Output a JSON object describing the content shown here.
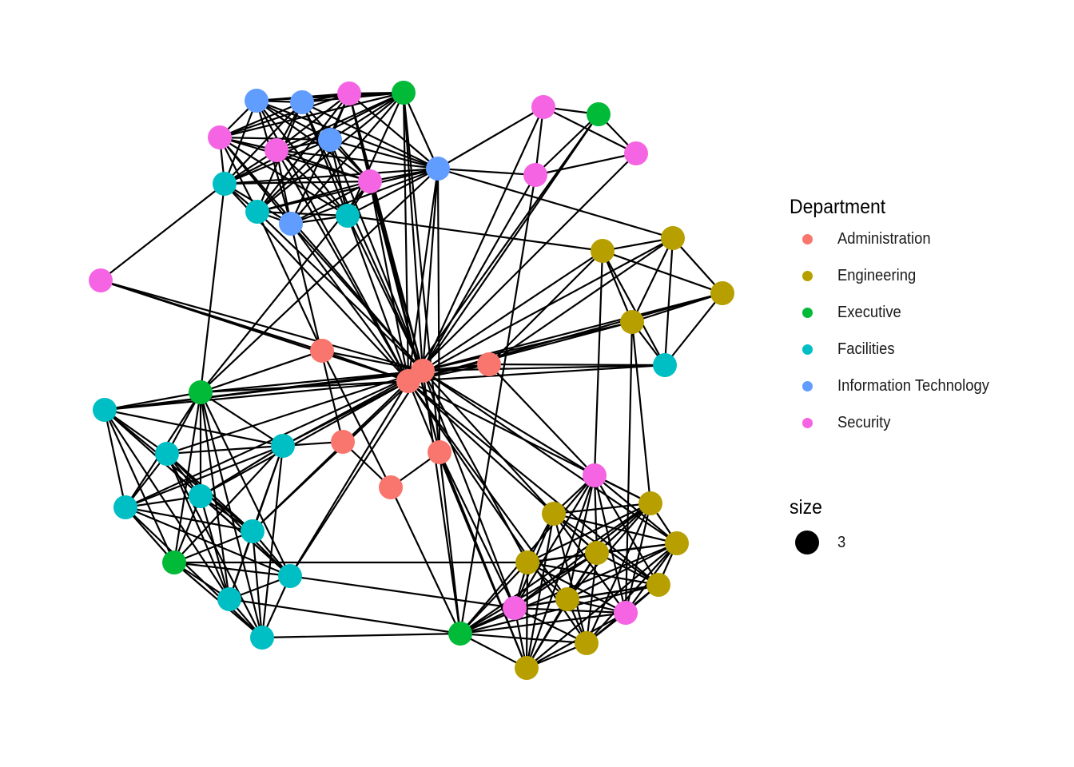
{
  "chart_data": {
    "type": "network",
    "legend": {
      "color_title": "Department",
      "size_title": "size",
      "size_value": "3",
      "placement": "right"
    },
    "departments": [
      {
        "name": "Administration",
        "color": "#F8766D"
      },
      {
        "name": "Engineering",
        "color": "#B79F00"
      },
      {
        "name": "Executive",
        "color": "#00BA38"
      },
      {
        "name": "Facilities",
        "color": "#00BFC4"
      },
      {
        "name": "Information Technology",
        "color": "#619CFF"
      },
      {
        "name": "Security",
        "color": "#F564E3"
      }
    ],
    "nodes": [
      {
        "id": 0,
        "dept": "Information Technology",
        "pos": [
          321,
          126
        ]
      },
      {
        "id": 1,
        "dept": "Information Technology",
        "pos": [
          378,
          128
        ]
      },
      {
        "id": 2,
        "dept": "Security",
        "pos": [
          437,
          117
        ]
      },
      {
        "id": 3,
        "dept": "Executive",
        "pos": [
          505,
          116
        ]
      },
      {
        "id": 4,
        "dept": "Security",
        "pos": [
          275,
          172
        ]
      },
      {
        "id": 5,
        "dept": "Security",
        "pos": [
          346,
          188
        ]
      },
      {
        "id": 6,
        "dept": "Information Technology",
        "pos": [
          413,
          175
        ]
      },
      {
        "id": 7,
        "dept": "Facilities",
        "pos": [
          281,
          230
        ]
      },
      {
        "id": 8,
        "dept": "Security",
        "pos": [
          463,
          227
        ]
      },
      {
        "id": 9,
        "dept": "Information Technology",
        "pos": [
          548,
          211
        ]
      },
      {
        "id": 10,
        "dept": "Facilities",
        "pos": [
          322,
          265
        ]
      },
      {
        "id": 11,
        "dept": "Information Technology",
        "pos": [
          364,
          280
        ]
      },
      {
        "id": 12,
        "dept": "Facilities",
        "pos": [
          435,
          270
        ]
      },
      {
        "id": 13,
        "dept": "Security",
        "pos": [
          680,
          134
        ]
      },
      {
        "id": 14,
        "dept": "Executive",
        "pos": [
          749,
          143
        ]
      },
      {
        "id": 15,
        "dept": "Security",
        "pos": [
          796,
          192
        ]
      },
      {
        "id": 16,
        "dept": "Security",
        "pos": [
          670,
          219
        ]
      },
      {
        "id": 17,
        "dept": "Engineering",
        "pos": [
          754,
          314
        ]
      },
      {
        "id": 18,
        "dept": "Engineering",
        "pos": [
          842,
          298
        ]
      },
      {
        "id": 19,
        "dept": "Engineering",
        "pos": [
          904,
          367
        ]
      },
      {
        "id": 20,
        "dept": "Engineering",
        "pos": [
          791,
          403
        ]
      },
      {
        "id": 21,
        "dept": "Facilities",
        "pos": [
          832,
          457
        ]
      },
      {
        "id": 22,
        "dept": "Security",
        "pos": [
          126,
          351
        ]
      },
      {
        "id": 23,
        "dept": "Administration",
        "pos": [
          403,
          439
        ]
      },
      {
        "id": 24,
        "dept": "Administration",
        "pos": [
          529,
          464
        ]
      },
      {
        "id": 25,
        "dept": "Administration",
        "pos": [
          511,
          477
        ]
      },
      {
        "id": 26,
        "dept": "Administration",
        "pos": [
          612,
          456
        ]
      },
      {
        "id": 27,
        "dept": "Administration",
        "pos": [
          429,
          553
        ]
      },
      {
        "id": 28,
        "dept": "Administration",
        "pos": [
          550,
          566
        ]
      },
      {
        "id": 29,
        "dept": "Administration",
        "pos": [
          489,
          610
        ]
      },
      {
        "id": 30,
        "dept": "Facilities",
        "pos": [
          131,
          513
        ]
      },
      {
        "id": 31,
        "dept": "Executive",
        "pos": [
          251,
          491
        ]
      },
      {
        "id": 32,
        "dept": "Facilities",
        "pos": [
          209,
          568
        ]
      },
      {
        "id": 33,
        "dept": "Facilities",
        "pos": [
          354,
          558
        ]
      },
      {
        "id": 34,
        "dept": "Facilities",
        "pos": [
          157,
          635
        ]
      },
      {
        "id": 35,
        "dept": "Facilities",
        "pos": [
          251,
          621
        ]
      },
      {
        "id": 36,
        "dept": "Facilities",
        "pos": [
          316,
          665
        ]
      },
      {
        "id": 37,
        "dept": "Executive",
        "pos": [
          218,
          704
        ]
      },
      {
        "id": 38,
        "dept": "Facilities",
        "pos": [
          363,
          721
        ]
      },
      {
        "id": 39,
        "dept": "Facilities",
        "pos": [
          287,
          750
        ]
      },
      {
        "id": 40,
        "dept": "Facilities",
        "pos": [
          328,
          798
        ]
      },
      {
        "id": 41,
        "dept": "Security",
        "pos": [
          744,
          595
        ]
      },
      {
        "id": 42,
        "dept": "Engineering",
        "pos": [
          814,
          630
        ]
      },
      {
        "id": 43,
        "dept": "Engineering",
        "pos": [
          693,
          643
        ]
      },
      {
        "id": 44,
        "dept": "Engineering",
        "pos": [
          847,
          680
        ]
      },
      {
        "id": 45,
        "dept": "Engineering",
        "pos": [
          747,
          692
        ]
      },
      {
        "id": 46,
        "dept": "Engineering",
        "pos": [
          660,
          704
        ]
      },
      {
        "id": 47,
        "dept": "Engineering",
        "pos": [
          824,
          732
        ]
      },
      {
        "id": 48,
        "dept": "Engineering",
        "pos": [
          710,
          750
        ]
      },
      {
        "id": 49,
        "dept": "Security",
        "pos": [
          644,
          761
        ]
      },
      {
        "id": 50,
        "dept": "Security",
        "pos": [
          783,
          767
        ]
      },
      {
        "id": 51,
        "dept": "Engineering",
        "pos": [
          734,
          805
        ]
      },
      {
        "id": 52,
        "dept": "Engineering",
        "pos": [
          659,
          836
        ]
      },
      {
        "id": 53,
        "dept": "Executive",
        "pos": [
          576,
          793
        ]
      }
    ],
    "clusters": [
      [
        0,
        1,
        2,
        3,
        4,
        5,
        6,
        7,
        8,
        9,
        10,
        11,
        12
      ],
      [
        13,
        14,
        15,
        16
      ],
      [
        17,
        18,
        19,
        20,
        21
      ],
      [
        30,
        31,
        32,
        33,
        34,
        35,
        36,
        37,
        38,
        39,
        40
      ],
      [
        41,
        42,
        43,
        44,
        45,
        46,
        47,
        48,
        49,
        50,
        51,
        52,
        53
      ]
    ],
    "hubs": [
      24,
      25
    ],
    "extra_edges": [
      [
        22,
        7
      ],
      [
        22,
        24
      ],
      [
        22,
        25
      ],
      [
        22,
        23
      ],
      [
        7,
        31
      ],
      [
        30,
        24
      ],
      [
        30,
        25
      ],
      [
        31,
        24
      ],
      [
        31,
        25
      ],
      [
        31,
        9
      ],
      [
        31,
        8
      ],
      [
        9,
        16
      ],
      [
        9,
        13
      ],
      [
        9,
        18
      ],
      [
        9,
        28
      ],
      [
        12,
        17
      ],
      [
        11,
        27
      ],
      [
        10,
        23
      ],
      [
        23,
        25
      ],
      [
        23,
        29
      ],
      [
        23,
        31
      ],
      [
        27,
        29
      ],
      [
        28,
        29
      ],
      [
        26,
        24
      ],
      [
        26,
        25
      ],
      [
        26,
        41
      ],
      [
        24,
        21
      ],
      [
        25,
        21
      ],
      [
        24,
        19
      ],
      [
        25,
        19
      ],
      [
        24,
        20
      ],
      [
        24,
        13
      ],
      [
        25,
        14
      ],
      [
        24,
        16
      ],
      [
        25,
        15
      ],
      [
        24,
        17
      ],
      [
        25,
        18
      ],
      [
        13,
        16
      ],
      [
        14,
        16
      ],
      [
        13,
        15
      ],
      [
        14,
        15
      ],
      [
        17,
        18
      ],
      [
        17,
        20
      ],
      [
        17,
        21
      ],
      [
        18,
        19
      ],
      [
        18,
        20
      ],
      [
        18,
        21
      ],
      [
        19,
        20
      ],
      [
        19,
        21
      ],
      [
        20,
        21
      ],
      [
        17,
        19
      ],
      [
        20,
        50
      ],
      [
        17,
        41
      ],
      [
        24,
        41
      ],
      [
        25,
        42
      ],
      [
        24,
        43
      ],
      [
        25,
        45
      ],
      [
        24,
        46
      ],
      [
        25,
        48
      ],
      [
        24,
        44
      ],
      [
        25,
        47
      ],
      [
        28,
        53
      ],
      [
        28,
        52
      ],
      [
        28,
        49
      ],
      [
        29,
        53
      ],
      [
        24,
        53
      ],
      [
        25,
        52
      ],
      [
        24,
        49
      ],
      [
        25,
        51
      ],
      [
        33,
        24
      ],
      [
        33,
        25
      ],
      [
        36,
        24
      ],
      [
        38,
        24
      ],
      [
        38,
        25
      ],
      [
        36,
        25
      ],
      [
        35,
        25
      ],
      [
        32,
        24
      ],
      [
        34,
        24
      ],
      [
        33,
        27
      ],
      [
        40,
        53
      ],
      [
        38,
        49
      ],
      [
        37,
        46
      ],
      [
        39,
        53
      ],
      [
        31,
        38
      ],
      [
        30,
        33
      ],
      [
        32,
        33
      ],
      [
        11,
        25
      ],
      [
        11,
        24
      ],
      [
        12,
        24
      ],
      [
        12,
        25
      ],
      [
        10,
        24
      ],
      [
        8,
        24
      ],
      [
        8,
        25
      ],
      [
        6,
        24
      ],
      [
        5,
        25
      ],
      [
        4,
        24
      ],
      [
        2,
        24
      ],
      [
        3,
        24
      ],
      [
        3,
        25
      ],
      [
        0,
        25
      ],
      [
        1,
        24
      ],
      [
        3,
        28
      ],
      [
        9,
        24
      ],
      [
        9,
        25
      ],
      [
        7,
        25
      ],
      [
        2,
        28
      ],
      [
        8,
        28
      ],
      [
        21,
        26
      ],
      [
        21,
        25
      ],
      [
        26,
        17
      ],
      [
        26,
        18
      ],
      [
        24,
        12
      ],
      [
        23,
        24
      ],
      [
        16,
        53
      ],
      [
        14,
        24
      ],
      [
        20,
        25
      ],
      [
        42,
        20
      ],
      [
        30,
        26
      ]
    ]
  }
}
